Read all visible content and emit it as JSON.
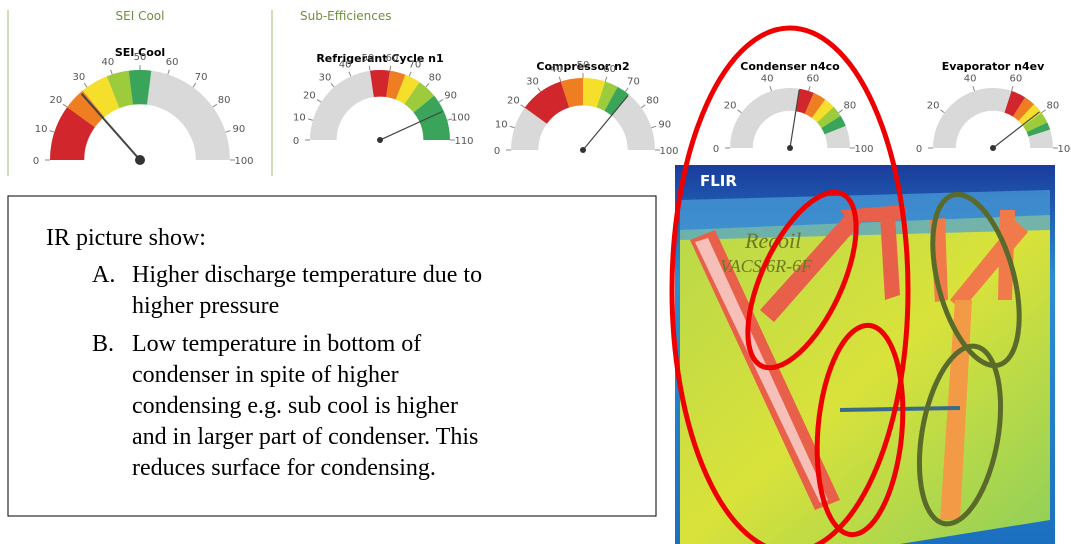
{
  "headers": [
    "SEI Cool",
    "Sub-Efficiences"
  ],
  "gauges": [
    {
      "title": "SEI Cool",
      "min": 0,
      "max": 100,
      "ticks": [
        0,
        10,
        20,
        30,
        40,
        50,
        60,
        70,
        80,
        90,
        100
      ],
      "value": 27,
      "bands": [
        {
          "from": 0,
          "to": 20,
          "color": "#d0262c"
        },
        {
          "from": 20,
          "to": 28,
          "color": "#ef7d22"
        },
        {
          "from": 28,
          "to": 38,
          "color": "#f6df2a"
        },
        {
          "from": 38,
          "to": 46,
          "color": "#9ccc3c"
        },
        {
          "from": 46,
          "to": 54,
          "color": "#3aa55a"
        }
      ]
    },
    {
      "title": "Refrigerant Cycle n1",
      "min": 0,
      "max": 110,
      "ticks": [
        0,
        10,
        20,
        30,
        40,
        50,
        60,
        70,
        80,
        90,
        100,
        110
      ],
      "value": 95,
      "bands": [
        {
          "from": 50,
          "to": 60,
          "color": "#d0262c"
        },
        {
          "from": 60,
          "to": 68,
          "color": "#ef7d22"
        },
        {
          "from": 68,
          "to": 76,
          "color": "#f6df2a"
        },
        {
          "from": 76,
          "to": 86,
          "color": "#9ccc3c"
        },
        {
          "from": 86,
          "to": 110,
          "color": "#3aa55a"
        }
      ]
    },
    {
      "title": "Compressor n2",
      "min": 0,
      "max": 100,
      "ticks": [
        0,
        10,
        20,
        30,
        40,
        50,
        60,
        70,
        80,
        90,
        100
      ],
      "value": 72,
      "bands": [
        {
          "from": 20,
          "to": 40,
          "color": "#d0262c"
        },
        {
          "from": 40,
          "to": 50,
          "color": "#ef7d22"
        },
        {
          "from": 50,
          "to": 60,
          "color": "#f6df2a"
        },
        {
          "from": 60,
          "to": 66,
          "color": "#9ccc3c"
        },
        {
          "from": 66,
          "to": 72,
          "color": "#3aa55a"
        }
      ]
    },
    {
      "title": "Condenser n4co",
      "min": 0,
      "max": 100,
      "ticks": [
        0,
        20,
        40,
        60,
        80,
        100
      ],
      "value": 55,
      "bands": [
        {
          "from": 55,
          "to": 63,
          "color": "#d0262c"
        },
        {
          "from": 63,
          "to": 70,
          "color": "#ef7d22"
        },
        {
          "from": 70,
          "to": 76,
          "color": "#f6df2a"
        },
        {
          "from": 76,
          "to": 82,
          "color": "#9ccc3c"
        },
        {
          "from": 82,
          "to": 88,
          "color": "#3aa55a"
        }
      ]
    },
    {
      "title": "Evaporator  n4ev",
      "min": 0,
      "max": 100,
      "ticks": [
        0,
        20,
        40,
        60,
        80,
        100
      ],
      "value": 79,
      "bands": [
        {
          "from": 60,
          "to": 68,
          "color": "#d0262c"
        },
        {
          "from": 68,
          "to": 74,
          "color": "#ef7d22"
        },
        {
          "from": 74,
          "to": 80,
          "color": "#f6df2a"
        },
        {
          "from": 80,
          "to": 86,
          "color": "#9ccc3c"
        },
        {
          "from": 86,
          "to": 90,
          "color": "#3aa55a"
        }
      ]
    }
  ],
  "note": {
    "heading": "IR picture show:",
    "items": [
      {
        "marker": "A.",
        "lines": [
          "Higher discharge temperature due to",
          "higher pressure"
        ]
      },
      {
        "marker": "B.",
        "lines": [
          "Low temperature in bottom of",
          "condenser in spite of higher",
          "condensing e.g.  sub cool is higher",
          "and in larger part of condenser. This",
          "reduces surface for condensing."
        ]
      }
    ]
  },
  "ir_image": {
    "logo": "FLIR",
    "brand": "Recoil",
    "model": "VACS 6R-6F"
  }
}
